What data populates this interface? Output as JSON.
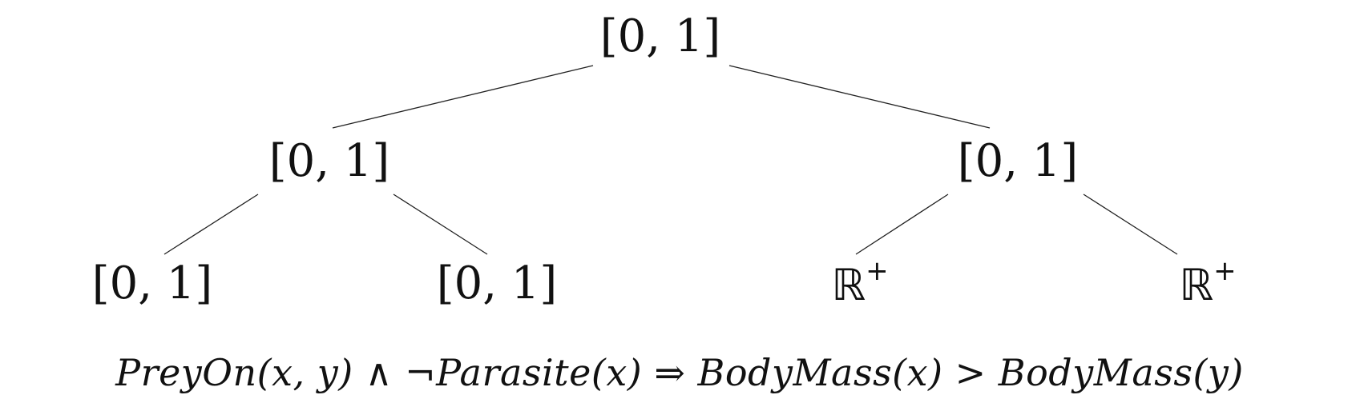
{
  "tree": {
    "root": {
      "label": "[0, 1]"
    },
    "left": {
      "label": "[0, 1]"
    },
    "right": {
      "label": "[0, 1]"
    },
    "left_left": {
      "label": "[0, 1]"
    },
    "left_right": {
      "label": "[0, 1]"
    },
    "right_left": {
      "label": "ℝ",
      "superscript": "+"
    },
    "right_right": {
      "label": "ℝ",
      "superscript": "+"
    }
  },
  "formula": "PreyOn(x, y) ∧ ¬Parasite(x) ⇒ BodyMass(x) > BodyMass(y)"
}
